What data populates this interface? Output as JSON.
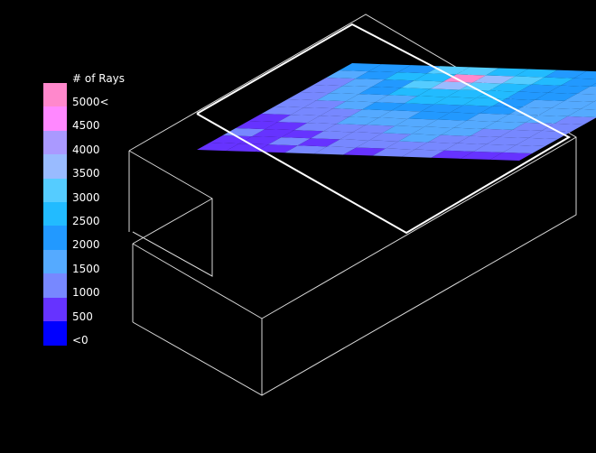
{
  "legend": {
    "title": "# of Rays",
    "bins": [
      {
        "label": "5000<",
        "color": "#ff88cc"
      },
      {
        "label": "4500",
        "color": "#ff88ff"
      },
      {
        "label": "4000",
        "color": "#aa99ff"
      },
      {
        "label": "3500",
        "color": "#99bbff"
      },
      {
        "label": "3000",
        "color": "#55ccff"
      },
      {
        "label": "2500",
        "color": "#22bbff"
      },
      {
        "label": "2000",
        "color": "#2299ff"
      },
      {
        "label": "1500",
        "color": "#55aaff"
      },
      {
        "label": "1000",
        "color": "#7788ff"
      },
      {
        "label": "500",
        "color": "#6633ff"
      },
      {
        "label": "<0",
        "color": "#0000ff"
      }
    ]
  },
  "heatmap": {
    "ray_counts": [
      [
        400,
        300,
        500,
        200,
        100,
        500,
        800,
        900,
        700,
        900,
        1200,
        1500
      ],
      [
        300,
        150,
        200,
        400,
        500,
        700,
        900,
        1000,
        1200,
        1400,
        1700,
        1500
      ],
      [
        200,
        500,
        300,
        600,
        700,
        900,
        1000,
        1300,
        1500,
        1800,
        2200,
        1900
      ],
      [
        500,
        400,
        700,
        900,
        1000,
        1200,
        1600,
        1400,
        2000,
        2600,
        2300,
        2700
      ],
      [
        600,
        500,
        800,
        900,
        1100,
        1300,
        1800,
        2300,
        2400,
        3000,
        5200,
        2800
      ],
      [
        400,
        700,
        900,
        1100,
        1300,
        1500,
        1800,
        2000,
        2200,
        2500,
        3100,
        2400
      ],
      [
        600,
        800,
        1000,
        1200,
        1400,
        1600,
        1700,
        2000,
        2100,
        2300,
        2600,
        2200
      ],
      [
        500,
        700,
        800,
        1000,
        1200,
        1300,
        1500,
        1700,
        1800,
        1900,
        2100,
        1800
      ],
      [
        400,
        600,
        700,
        900,
        1000,
        1100,
        1300,
        1400,
        1500,
        1600,
        1800,
        1500
      ],
      [
        300,
        500,
        600,
        700,
        900,
        1000,
        1100,
        1200,
        1300,
        1400,
        1500,
        1300
      ],
      [
        400,
        500,
        600,
        700,
        800,
        900,
        1000,
        1100,
        1100,
        1200,
        1300,
        1200
      ]
    ]
  }
}
